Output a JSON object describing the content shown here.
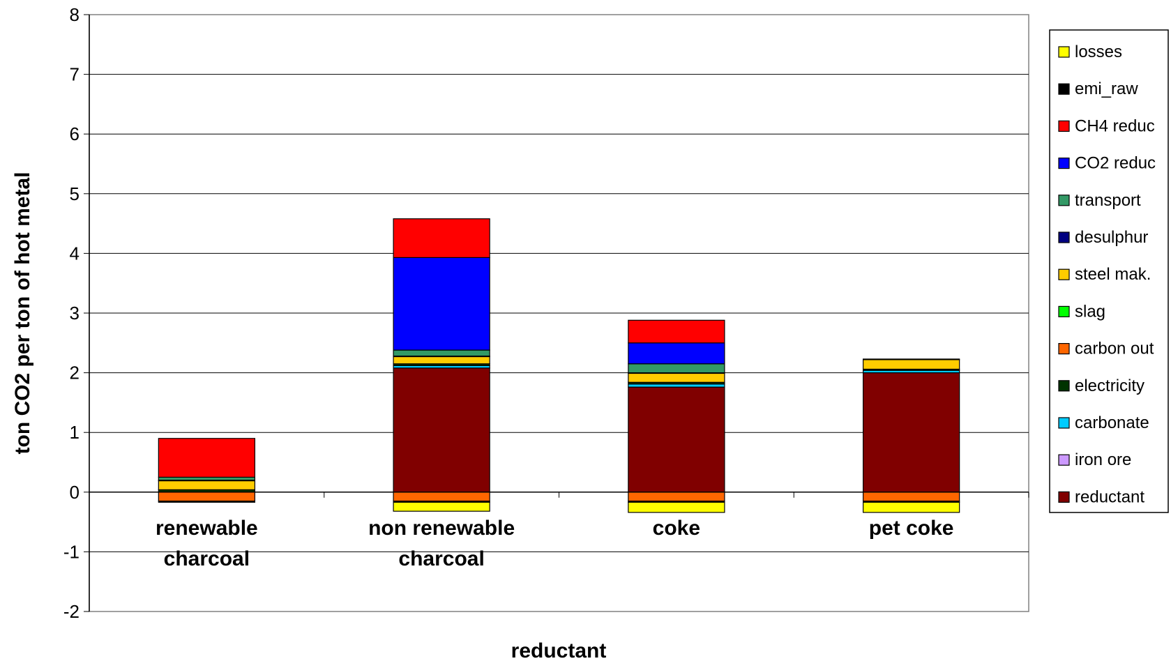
{
  "chart_data": {
    "type": "bar",
    "stacked": true,
    "title": "",
    "xlabel": "reductant",
    "ylabel": "ton CO2 per ton of hot metal",
    "ylim": [
      -2,
      8
    ],
    "yticks": [
      -2,
      -1,
      0,
      1,
      2,
      3,
      4,
      5,
      6,
      7,
      8
    ],
    "grid": true,
    "legend_position": "right",
    "categories": [
      [
        "renewable",
        "charcoal"
      ],
      [
        "non renewable",
        "charcoal"
      ],
      [
        "coke"
      ],
      [
        "pet coke"
      ]
    ],
    "series": [
      {
        "name": "reductant",
        "color": "#800000",
        "values": [
          0.0,
          2.08,
          1.76,
          2.0
        ]
      },
      {
        "name": "iron ore",
        "color": "#cc99ff",
        "values": [
          0.0,
          0.0,
          0.0,
          0.0
        ]
      },
      {
        "name": "carbonate",
        "color": "#00ccff",
        "values": [
          0.0,
          0.04,
          0.05,
          0.04
        ]
      },
      {
        "name": "electricity",
        "color": "#003300",
        "values": [
          0.04,
          0.03,
          0.03,
          0.02
        ]
      },
      {
        "name": "carbon out",
        "color": "#ff6600",
        "values": [
          -0.15,
          -0.15,
          -0.15,
          -0.15
        ]
      },
      {
        "name": "slag",
        "color": "#00ff00",
        "values": [
          0.0,
          0.0,
          0.0,
          0.0
        ]
      },
      {
        "name": "steel mak.",
        "color": "#ffcc00",
        "values": [
          0.15,
          0.12,
          0.15,
          0.16
        ]
      },
      {
        "name": "desulphur",
        "color": "#000080",
        "values": [
          0.01,
          0.01,
          0.01,
          0.01
        ]
      },
      {
        "name": "transport",
        "color": "#339966",
        "values": [
          0.05,
          0.1,
          0.15,
          0.0
        ]
      },
      {
        "name": "CO2 reduc",
        "color": "#0000ff",
        "values": [
          0.0,
          1.55,
          0.35,
          0.0
        ]
      },
      {
        "name": "CH4 reduc",
        "color": "#ff0000",
        "values": [
          0.65,
          0.65,
          0.38,
          0.0
        ]
      },
      {
        "name": "emi_raw",
        "color": "#000000",
        "values": [
          -0.02,
          -0.02,
          -0.02,
          -0.02
        ]
      },
      {
        "name": "losses",
        "color": "#ffff00",
        "values": [
          0.0,
          -0.15,
          -0.17,
          -0.17
        ]
      }
    ]
  }
}
